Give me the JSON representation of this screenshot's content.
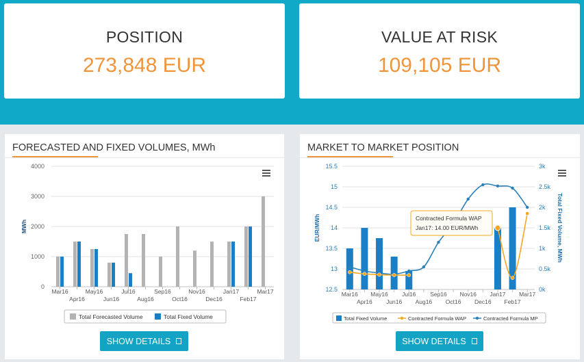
{
  "kpis": {
    "position": {
      "title": "POSITION",
      "value": "273,848 EUR"
    },
    "value_at_risk": {
      "title": "VALUE AT RISK",
      "value": "109,105 EUR"
    }
  },
  "volumes_panel": {
    "title": "FORECASTED AND FIXED VOLUMES, MWh",
    "button": "SHOW DETAILS",
    "button_icon": "external-link-icon",
    "menu_icon": "hamburger-icon"
  },
  "mtm_panel": {
    "title": "MARKET TO MARKET POSITION",
    "button": "SHOW DETAILS",
    "button_icon": "external-link-icon",
    "menu_icon": "hamburger-icon",
    "tooltip": {
      "line1": "Contracted Formula WAP",
      "line2": "Jan17: 14.00 EUR/MWh"
    }
  },
  "colors": {
    "band": "#10a9c8",
    "accent": "#f0953a",
    "forecast_gray": "#b3b3b3",
    "fixed_blue": "#1a7fc4",
    "mp_blue": "#2a80b9",
    "wap_orange": "#f5a623",
    "button": "#13a3c4"
  },
  "chart_data": [
    {
      "type": "bar",
      "title": "",
      "xlabel": "",
      "ylabel": "MWh",
      "ylim": [
        0,
        4000
      ],
      "yticks": [
        "0",
        "1000",
        "2000",
        "3000",
        "4000"
      ],
      "categories": [
        "Mar16",
        "Apr16",
        "May16",
        "Jun16",
        "Jul16",
        "Aug16",
        "Sep16",
        "Oct16",
        "Nov16",
        "Dec16",
        "Jan17",
        "Feb17",
        "Mar17"
      ],
      "series": [
        {
          "name": "Total Forecasted Volume",
          "values": [
            1000,
            1500,
            1250,
            800,
            1750,
            1750,
            1000,
            2000,
            1200,
            1500,
            1500,
            2000,
            3000
          ]
        },
        {
          "name": "Total Fixed Volume",
          "values": [
            1000,
            1500,
            1250,
            800,
            450,
            0,
            0,
            0,
            0,
            0,
            1500,
            2000,
            0
          ]
        }
      ],
      "legend": "bottom",
      "grid": true
    },
    {
      "type": "bar",
      "title": "",
      "categories": [
        "Mar16",
        "Apr16",
        "May16",
        "Jun16",
        "Jul16",
        "Aug16",
        "Sep16",
        "Oct16",
        "Nov16",
        "Dec16",
        "Jan17",
        "Feb17",
        "Mar17"
      ],
      "y_left": {
        "label": "EUR/MWh",
        "range": [
          12.5,
          15.5
        ],
        "ticks": [
          "12.5",
          "13",
          "13.5",
          "14",
          "14.5",
          "15",
          "15.5"
        ]
      },
      "y_right": {
        "label": "Total Fixed Volume, MWh",
        "range": [
          0,
          3000
        ],
        "ticks": [
          "0k",
          "0.5k",
          "1k",
          "1.5k",
          "2k",
          "2.5k",
          "3k"
        ]
      },
      "series": [
        {
          "name": "Total Fixed Volume",
          "kind": "bar",
          "axis": "right",
          "values": [
            1000,
            1500,
            1250,
            800,
            450,
            0,
            0,
            0,
            0,
            0,
            1500,
            2000,
            0
          ]
        },
        {
          "name": "Contracted Formula WAP",
          "kind": "line",
          "axis": "left",
          "values": [
            12.92,
            12.88,
            12.86,
            12.85,
            12.85,
            null,
            null,
            null,
            null,
            null,
            14.0,
            12.78,
            14.35
          ]
        },
        {
          "name": "Contracted Formula MP",
          "kind": "line",
          "axis": "left",
          "values": [
            13.05,
            12.95,
            12.9,
            12.87,
            12.95,
            13.05,
            13.65,
            14.1,
            14.7,
            15.05,
            15.02,
            14.97,
            14.5
          ]
        }
      ],
      "legend": "bottom",
      "grid": true
    }
  ]
}
